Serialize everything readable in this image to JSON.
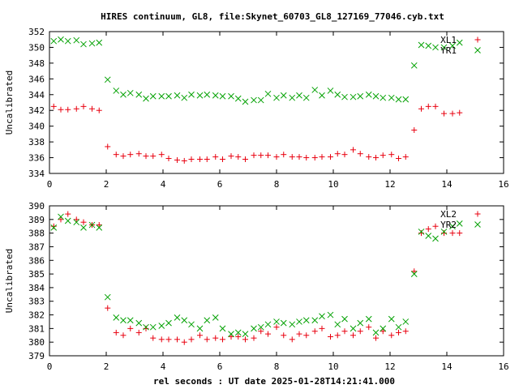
{
  "title": "HIRES continuum, GL8, file:Skynet_60703_GL8_127169_77046.cyb.txt",
  "xlabel": "rel seconds : UT date 2025-01-28T14:21:41.000",
  "colors": {
    "red": "#e8000f",
    "green": "#00a000"
  },
  "chart_data": [
    {
      "type": "scatter",
      "ylabel": "Uncalibrated",
      "xlim": [
        0,
        16
      ],
      "ylim": [
        334,
        352
      ],
      "xticks": [
        0,
        2,
        4,
        6,
        8,
        10,
        12,
        14,
        16
      ],
      "yticks": [
        334,
        336,
        338,
        340,
        342,
        344,
        346,
        348,
        350,
        352
      ],
      "legend_position": "top-right",
      "series": [
        {
          "name": "XL1",
          "color": "#e8000f",
          "marker": "plus",
          "x": [
            0.15,
            0.4,
            0.65,
            0.95,
            1.2,
            1.5,
            1.75,
            2.05,
            2.35,
            2.6,
            2.85,
            3.15,
            3.4,
            3.65,
            3.95,
            4.2,
            4.5,
            4.75,
            5.0,
            5.3,
            5.55,
            5.85,
            6.1,
            6.4,
            6.65,
            6.9,
            7.2,
            7.45,
            7.7,
            8.0,
            8.25,
            8.55,
            8.8,
            9.05,
            9.35,
            9.6,
            9.9,
            10.15,
            10.4,
            10.7,
            10.95,
            11.25,
            11.5,
            11.75,
            12.05,
            12.3,
            12.55,
            12.85,
            13.1,
            13.35,
            13.6,
            13.9,
            14.2,
            14.45
          ],
          "y": [
            342.5,
            342.1,
            342.1,
            342.2,
            342.5,
            342.2,
            342.0,
            337.4,
            336.4,
            336.2,
            336.4,
            336.5,
            336.2,
            336.2,
            336.4,
            335.9,
            335.7,
            335.6,
            335.8,
            335.8,
            335.8,
            336.1,
            335.8,
            336.2,
            336.1,
            335.8,
            336.3,
            336.3,
            336.3,
            336.1,
            336.4,
            336.1,
            336.1,
            336.0,
            336.0,
            336.1,
            336.1,
            336.5,
            336.4,
            337.0,
            336.5,
            336.1,
            336.0,
            336.3,
            336.4,
            335.9,
            336.1,
            339.5,
            342.2,
            342.5,
            342.5,
            341.6,
            341.6,
            341.7
          ]
        },
        {
          "name": "YR1",
          "color": "#00a000",
          "marker": "cross",
          "x": [
            0.15,
            0.4,
            0.65,
            0.95,
            1.2,
            1.5,
            1.75,
            2.05,
            2.35,
            2.6,
            2.85,
            3.15,
            3.4,
            3.65,
            3.95,
            4.2,
            4.5,
            4.75,
            5.0,
            5.3,
            5.55,
            5.85,
            6.1,
            6.4,
            6.65,
            6.9,
            7.2,
            7.45,
            7.7,
            8.0,
            8.25,
            8.55,
            8.8,
            9.05,
            9.35,
            9.6,
            9.9,
            10.15,
            10.4,
            10.7,
            10.95,
            11.25,
            11.5,
            11.75,
            12.05,
            12.3,
            12.55,
            12.85,
            13.1,
            13.35,
            13.6,
            13.9,
            14.2,
            14.45
          ],
          "y": [
            350.8,
            351.0,
            350.8,
            350.9,
            350.4,
            350.5,
            350.6,
            345.9,
            344.5,
            344.0,
            344.2,
            344.0,
            343.5,
            343.8,
            343.8,
            343.8,
            343.9,
            343.6,
            344.0,
            343.9,
            344.0,
            343.9,
            343.8,
            343.8,
            343.5,
            343.1,
            343.3,
            343.3,
            344.1,
            343.6,
            343.9,
            343.6,
            343.9,
            343.6,
            344.6,
            343.9,
            344.5,
            344.0,
            343.7,
            343.7,
            343.8,
            344.0,
            343.8,
            343.6,
            343.6,
            343.4,
            343.4,
            347.7,
            350.3,
            350.2,
            350.0,
            350.0,
            350.2,
            350.6
          ]
        }
      ]
    },
    {
      "type": "scatter",
      "ylabel": "Uncalibrated",
      "xlim": [
        0,
        16
      ],
      "ylim": [
        379,
        390
      ],
      "xticks": [
        0,
        2,
        4,
        6,
        8,
        10,
        12,
        14,
        16
      ],
      "yticks": [
        379,
        380,
        381,
        382,
        383,
        384,
        385,
        386,
        387,
        388,
        389,
        390
      ],
      "legend_position": "top-right",
      "series": [
        {
          "name": "XL2",
          "color": "#e8000f",
          "marker": "plus",
          "x": [
            0.15,
            0.4,
            0.65,
            0.95,
            1.2,
            1.5,
            1.75,
            2.05,
            2.35,
            2.6,
            2.85,
            3.15,
            3.4,
            3.65,
            3.95,
            4.2,
            4.5,
            4.75,
            5.0,
            5.3,
            5.55,
            5.85,
            6.1,
            6.4,
            6.65,
            6.9,
            7.2,
            7.45,
            7.7,
            8.0,
            8.25,
            8.55,
            8.8,
            9.05,
            9.35,
            9.6,
            9.9,
            10.15,
            10.4,
            10.7,
            10.95,
            11.25,
            11.5,
            11.75,
            12.05,
            12.3,
            12.55,
            12.85,
            13.1,
            13.35,
            13.6,
            13.9,
            14.2,
            14.45
          ],
          "y": [
            388.5,
            389.0,
            389.4,
            389.0,
            388.8,
            388.6,
            388.6,
            382.5,
            380.7,
            380.5,
            381.0,
            380.7,
            381.0,
            380.3,
            380.2,
            380.2,
            380.2,
            380.0,
            380.2,
            380.5,
            380.2,
            380.3,
            380.2,
            380.4,
            380.4,
            380.2,
            380.3,
            380.8,
            380.6,
            381.1,
            380.5,
            380.2,
            380.6,
            380.5,
            380.8,
            381.0,
            380.4,
            380.5,
            380.8,
            380.5,
            380.8,
            381.1,
            380.3,
            380.8,
            380.5,
            380.7,
            380.8,
            385.2,
            388.0,
            388.3,
            388.5,
            388.0,
            388.0,
            388.0
          ]
        },
        {
          "name": "YR2",
          "color": "#00a000",
          "marker": "cross",
          "x": [
            0.15,
            0.4,
            0.65,
            0.95,
            1.2,
            1.5,
            1.75,
            2.05,
            2.35,
            2.6,
            2.85,
            3.15,
            3.4,
            3.65,
            3.95,
            4.2,
            4.5,
            4.75,
            5.0,
            5.3,
            5.55,
            5.85,
            6.1,
            6.4,
            6.65,
            6.9,
            7.2,
            7.45,
            7.7,
            8.0,
            8.25,
            8.55,
            8.8,
            9.05,
            9.35,
            9.6,
            9.9,
            10.15,
            10.4,
            10.7,
            10.95,
            11.25,
            11.5,
            11.75,
            12.05,
            12.3,
            12.55,
            12.85,
            13.1,
            13.35,
            13.6,
            13.9,
            14.2,
            14.45
          ],
          "y": [
            388.4,
            389.2,
            388.9,
            388.8,
            388.4,
            388.6,
            388.4,
            383.3,
            381.8,
            381.6,
            381.6,
            381.4,
            381.1,
            381.1,
            381.2,
            381.4,
            381.8,
            381.6,
            381.3,
            381.0,
            381.6,
            381.8,
            381.0,
            380.6,
            380.7,
            380.6,
            381.0,
            381.1,
            381.3,
            381.5,
            381.4,
            381.3,
            381.5,
            381.6,
            381.6,
            381.9,
            382.0,
            381.3,
            381.7,
            381.0,
            381.4,
            381.7,
            380.7,
            381.0,
            381.7,
            381.1,
            381.5,
            385.0,
            388.1,
            387.8,
            387.6,
            388.1,
            388.5,
            388.7
          ]
        }
      ]
    }
  ]
}
